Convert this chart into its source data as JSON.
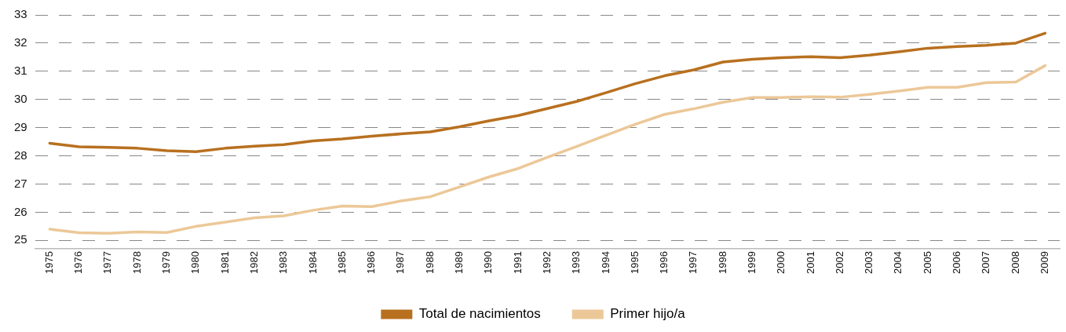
{
  "chart_data": {
    "type": "line",
    "categories": [
      "1975",
      "1976",
      "1977",
      "1978",
      "1979",
      "1980",
      "1981",
      "1982",
      "1983",
      "1984",
      "1985",
      "1986",
      "1987",
      "1988",
      "1989",
      "1990",
      "1991",
      "1992",
      "1993",
      "1994",
      "1995",
      "1996",
      "1997",
      "1998",
      "1999",
      "2000",
      "2001",
      "2002",
      "2003",
      "2004",
      "2005",
      "2006",
      "2007",
      "2008",
      "2009"
    ],
    "series": [
      {
        "name": "Total de nacimientos",
        "color": "#b8701f",
        "values": [
          28.45,
          28.32,
          28.3,
          28.27,
          28.18,
          28.15,
          28.27,
          28.34,
          28.4,
          28.53,
          28.6,
          28.7,
          28.78,
          28.85,
          29.03,
          29.24,
          29.43,
          29.68,
          29.93,
          30.24,
          30.56,
          30.84,
          31.05,
          31.33,
          31.43,
          31.48,
          31.52,
          31.48,
          31.57,
          31.69,
          31.82,
          31.88,
          31.92,
          32.0,
          32.35
        ]
      },
      {
        "name": "Primer hijo/a",
        "color": "#ecc898",
        "values": [
          25.4,
          25.27,
          25.25,
          25.3,
          25.28,
          25.5,
          25.65,
          25.8,
          25.87,
          26.07,
          26.22,
          26.2,
          26.4,
          26.55,
          26.9,
          27.25,
          27.55,
          27.95,
          28.33,
          28.73,
          29.12,
          29.47,
          29.67,
          29.9,
          30.07,
          30.07,
          30.1,
          30.08,
          30.18,
          30.3,
          30.43,
          30.43,
          30.6,
          30.62,
          31.2
        ]
      }
    ],
    "ylim": [
      24.7,
      33
    ],
    "yticks": [
      25,
      26,
      27,
      28,
      29,
      30,
      31,
      32,
      33
    ],
    "grid": "y",
    "legend": "bottom",
    "marker": "none",
    "line_style": "solid"
  }
}
